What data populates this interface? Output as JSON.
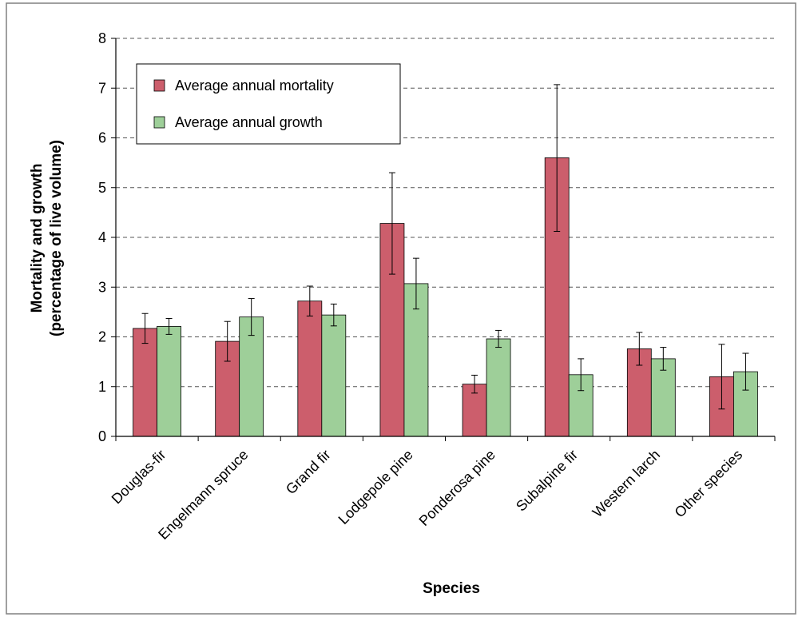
{
  "chart_data": {
    "type": "bar",
    "title": "",
    "xlabel": "Species",
    "ylabel": [
      "Mortality and growth",
      "(percentage of live volume)"
    ],
    "ylim": [
      0,
      8
    ],
    "yticks": [
      0,
      1,
      2,
      3,
      4,
      5,
      6,
      7,
      8
    ],
    "grid": "horizontal dashed",
    "legend_position": "top-left",
    "categories": [
      "Douglas-fir",
      "Engelmann spruce",
      "Grand fir",
      "Lodgepole pine",
      "Ponderosa pine",
      "Subalpine fir",
      "Western larch",
      "Other species"
    ],
    "series": [
      {
        "name": "Average annual mortality",
        "color": "#cc5e6c",
        "values": [
          2.17,
          1.91,
          2.72,
          4.28,
          1.05,
          5.6,
          1.76,
          1.2
        ],
        "error_low": [
          1.87,
          1.51,
          2.42,
          3.26,
          0.87,
          4.12,
          1.43,
          0.55
        ],
        "error_high": [
          2.47,
          2.31,
          3.02,
          5.3,
          1.23,
          7.07,
          2.09,
          1.85
        ]
      },
      {
        "name": "Average annual growth",
        "color": "#9ecf99",
        "values": [
          2.21,
          2.4,
          2.44,
          3.07,
          1.96,
          1.24,
          1.56,
          1.3
        ],
        "error_low": [
          2.05,
          2.03,
          2.22,
          2.56,
          1.79,
          0.92,
          1.33,
          0.93
        ],
        "error_high": [
          2.37,
          2.77,
          2.66,
          3.58,
          2.13,
          1.56,
          1.79,
          1.67
        ]
      }
    ]
  }
}
